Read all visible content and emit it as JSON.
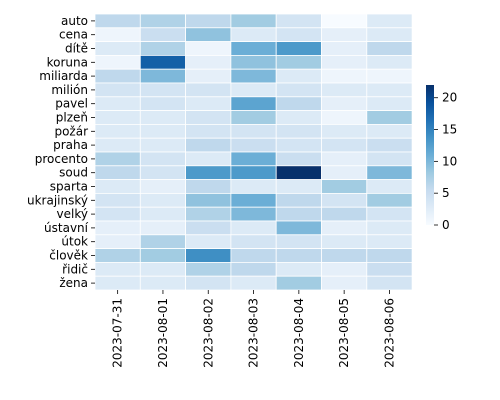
{
  "chart_data": {
    "type": "heatmap",
    "title": "",
    "xlabel": "",
    "ylabel": "",
    "x": [
      "2023-07-31",
      "2023-08-01",
      "2023-08-02",
      "2023-08-03",
      "2023-08-04",
      "2023-08-05",
      "2023-08-06"
    ],
    "y": [
      "auto",
      "cena",
      "dítě",
      "koruna",
      "miliarda",
      "milión",
      "pavel",
      "plzeň",
      "požár",
      "praha",
      "procento",
      "soud",
      "sparta",
      "ukrajinský",
      "velký",
      "ústavní",
      "útok",
      "člověk",
      "řidič",
      "žena"
    ],
    "values": [
      [
        6,
        7,
        6,
        8,
        4,
        0,
        3
      ],
      [
        1,
        5,
        9,
        3,
        4,
        2,
        3
      ],
      [
        3,
        7,
        1,
        11,
        13,
        2,
        6
      ],
      [
        1,
        18,
        2,
        9,
        8,
        2,
        3
      ],
      [
        6,
        10,
        2,
        10,
        3,
        1,
        1
      ],
      [
        4,
        4,
        4,
        3,
        4,
        3,
        3
      ],
      [
        3,
        4,
        3,
        12,
        6,
        2,
        3
      ],
      [
        3,
        3,
        4,
        8,
        3,
        1,
        8
      ],
      [
        3,
        3,
        4,
        4,
        4,
        3,
        3
      ],
      [
        3,
        3,
        6,
        5,
        4,
        4,
        5
      ],
      [
        7,
        4,
        3,
        11,
        5,
        2,
        4
      ],
      [
        6,
        4,
        13,
        13,
        22,
        2,
        10
      ],
      [
        3,
        2,
        6,
        3,
        3,
        8,
        3
      ],
      [
        4,
        3,
        9,
        11,
        6,
        4,
        8
      ],
      [
        4,
        3,
        7,
        10,
        6,
        6,
        4
      ],
      [
        2,
        2,
        5,
        3,
        10,
        2,
        3
      ],
      [
        2,
        7,
        3,
        4,
        4,
        3,
        3
      ],
      [
        7,
        8,
        14,
        6,
        6,
        6,
        6
      ],
      [
        3,
        3,
        7,
        6,
        3,
        2,
        5
      ],
      [
        3,
        3,
        4,
        3,
        8,
        2,
        4
      ]
    ],
    "vmin": 0,
    "vmax": 22,
    "colormap": "Blues",
    "colors": [
      "#f7fbff",
      "#deebf7",
      "#c6dbef",
      "#9ecae1",
      "#6baed6",
      "#4292c6",
      "#2171b5",
      "#08519c",
      "#08306b"
    ],
    "colorbar": {
      "ticks": [
        0,
        5,
        10,
        15,
        20
      ],
      "tick_labels": [
        "0",
        "5",
        "10",
        "15",
        "20"
      ]
    },
    "cell_edge_color": "#ffffff",
    "grid": false,
    "legend": "colorbar-right"
  }
}
